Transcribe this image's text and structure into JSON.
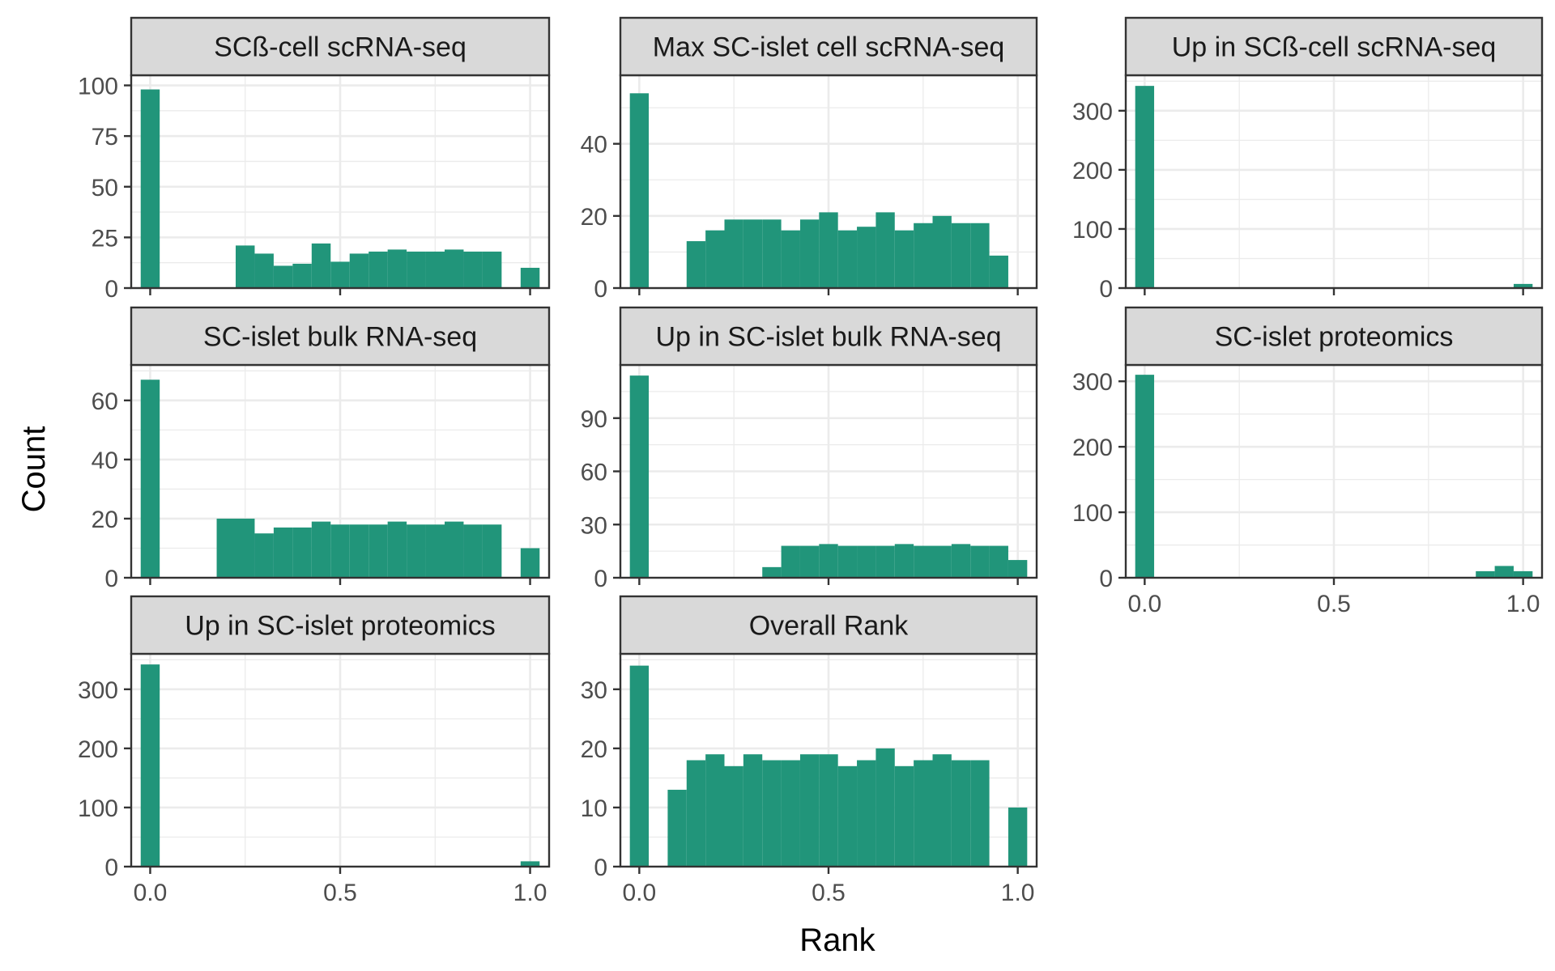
{
  "figure": {
    "xlabel": "Rank",
    "ylabel": "Count",
    "bar_color": "#21957A",
    "strip_fill": "#D9D9D9",
    "panel_border": "#333333",
    "grid_color": "#EBEBEB"
  },
  "chart_data": [
    {
      "type": "bar",
      "title": "SCß-cell scRNA-seq",
      "bin_width": 0.05,
      "bin_centers": [
        0,
        0.05,
        0.1,
        0.15,
        0.2,
        0.25,
        0.3,
        0.35,
        0.4,
        0.45,
        0.5,
        0.55,
        0.6,
        0.65,
        0.7,
        0.75,
        0.8,
        0.85,
        0.9,
        0.95,
        1.0
      ],
      "values": [
        98,
        0,
        0,
        0,
        0,
        21,
        17,
        11,
        12,
        22,
        13,
        17,
        18,
        19,
        18,
        18,
        19,
        18,
        18,
        0,
        10
      ],
      "ylim": [
        0,
        105
      ],
      "xlim": [
        -0.05,
        1.05
      ],
      "xticks": [
        0.0,
        0.5,
        1.0
      ],
      "xtick_labels": [],
      "yticks": [
        0,
        25,
        50,
        75,
        100
      ],
      "ytick_labels": [
        "0",
        "25",
        "50",
        "75",
        "100"
      ],
      "grid": true
    },
    {
      "type": "bar",
      "title": "Max SC-islet cell scRNA-seq",
      "bin_width": 0.05,
      "bin_centers": [
        0,
        0.05,
        0.1,
        0.15,
        0.2,
        0.25,
        0.3,
        0.35,
        0.4,
        0.45,
        0.5,
        0.55,
        0.6,
        0.65,
        0.7,
        0.75,
        0.8,
        0.85,
        0.9,
        0.95,
        1.0
      ],
      "values": [
        54,
        0,
        0,
        13,
        16,
        19,
        19,
        19,
        16,
        19,
        21,
        16,
        17,
        21,
        16,
        18,
        20,
        18,
        18,
        9,
        0
      ],
      "ylim": [
        0,
        59
      ],
      "xlim": [
        -0.05,
        1.05
      ],
      "xticks": [
        0.0,
        0.5,
        1.0
      ],
      "xtick_labels": [],
      "yticks": [
        0,
        20,
        40
      ],
      "ytick_labels": [
        "0",
        "20",
        "40"
      ],
      "grid": true
    },
    {
      "type": "bar",
      "title": "Up in SCß-cell scRNA-seq",
      "bin_width": 0.05,
      "bin_centers": [
        0,
        0.05,
        0.1,
        0.15,
        0.2,
        0.25,
        0.3,
        0.35,
        0.4,
        0.45,
        0.5,
        0.55,
        0.6,
        0.65,
        0.7,
        0.75,
        0.8,
        0.85,
        0.9,
        0.95,
        1.0
      ],
      "values": [
        342,
        0,
        0,
        0,
        0,
        0,
        0,
        0,
        0,
        0,
        0,
        0,
        0,
        0,
        0,
        0,
        0,
        0,
        0,
        0,
        7
      ],
      "ylim": [
        0,
        360
      ],
      "xlim": [
        -0.05,
        1.05
      ],
      "xticks": [
        0.0,
        0.5,
        1.0
      ],
      "xtick_labels": [],
      "yticks": [
        0,
        100,
        200,
        300
      ],
      "ytick_labels": [
        "0",
        "100",
        "200",
        "300"
      ],
      "grid": true
    },
    {
      "type": "bar",
      "title": "SC-islet bulk RNA-seq",
      "bin_width": 0.05,
      "bin_centers": [
        0,
        0.05,
        0.1,
        0.15,
        0.2,
        0.25,
        0.3,
        0.35,
        0.4,
        0.45,
        0.5,
        0.55,
        0.6,
        0.65,
        0.7,
        0.75,
        0.8,
        0.85,
        0.9,
        0.95,
        1.0
      ],
      "values": [
        67,
        0,
        0,
        0,
        20,
        20,
        15,
        17,
        17,
        19,
        18,
        18,
        18,
        19,
        18,
        18,
        19,
        18,
        18,
        0,
        10
      ],
      "ylim": [
        0,
        72
      ],
      "xlim": [
        -0.05,
        1.05
      ],
      "xticks": [
        0.0,
        0.5,
        1.0
      ],
      "xtick_labels": [],
      "yticks": [
        0,
        20,
        40,
        60
      ],
      "ytick_labels": [
        "0",
        "20",
        "40",
        "60"
      ],
      "grid": true
    },
    {
      "type": "bar",
      "title": "Up in SC-islet bulk RNA-seq",
      "bin_width": 0.05,
      "bin_centers": [
        0,
        0.05,
        0.1,
        0.15,
        0.2,
        0.25,
        0.3,
        0.35,
        0.4,
        0.45,
        0.5,
        0.55,
        0.6,
        0.65,
        0.7,
        0.75,
        0.8,
        0.85,
        0.9,
        0.95,
        1.0
      ],
      "values": [
        114,
        0,
        0,
        0,
        0,
        0,
        0,
        6,
        18,
        18,
        19,
        18,
        18,
        18,
        19,
        18,
        18,
        19,
        18,
        18,
        10
      ],
      "ylim": [
        0,
        120
      ],
      "xlim": [
        -0.05,
        1.05
      ],
      "xticks": [
        0.0,
        0.5,
        1.0
      ],
      "xtick_labels": [],
      "yticks": [
        0,
        30,
        60,
        90
      ],
      "ytick_labels": [
        "0",
        "30",
        "60",
        "90"
      ],
      "grid": true
    },
    {
      "type": "bar",
      "title": "SC-islet proteomics",
      "bin_width": 0.05,
      "bin_centers": [
        0,
        0.05,
        0.1,
        0.15,
        0.2,
        0.25,
        0.3,
        0.35,
        0.4,
        0.45,
        0.5,
        0.55,
        0.6,
        0.65,
        0.7,
        0.75,
        0.8,
        0.85,
        0.9,
        0.95,
        1.0
      ],
      "values": [
        310,
        0,
        0,
        0,
        0,
        0,
        0,
        0,
        0,
        0,
        0,
        0,
        0,
        0,
        0,
        0,
        0,
        0,
        10,
        18,
        10
      ],
      "ylim": [
        0,
        325
      ],
      "xlim": [
        -0.05,
        1.05
      ],
      "xticks": [
        0.0,
        0.5,
        1.0
      ],
      "xtick_labels": [
        "0.0",
        "0.5",
        "1.0"
      ],
      "yticks": [
        0,
        100,
        200,
        300
      ],
      "ytick_labels": [
        "0",
        "100",
        "200",
        "300"
      ],
      "grid": true
    },
    {
      "type": "bar",
      "title": "Up in SC-islet proteomics",
      "bin_width": 0.05,
      "bin_centers": [
        0,
        0.05,
        0.1,
        0.15,
        0.2,
        0.25,
        0.3,
        0.35,
        0.4,
        0.45,
        0.5,
        0.55,
        0.6,
        0.65,
        0.7,
        0.75,
        0.8,
        0.85,
        0.9,
        0.95,
        1.0
      ],
      "values": [
        342,
        0,
        0,
        0,
        0,
        0,
        0,
        0,
        0,
        0,
        0,
        0,
        0,
        0,
        0,
        0,
        0,
        0,
        0,
        0,
        9
      ],
      "ylim": [
        0,
        360
      ],
      "xlim": [
        -0.05,
        1.05
      ],
      "xticks": [
        0.0,
        0.5,
        1.0
      ],
      "xtick_labels": [
        "0.0",
        "0.5",
        "1.0"
      ],
      "yticks": [
        0,
        100,
        200,
        300
      ],
      "ytick_labels": [
        "0",
        "100",
        "200",
        "300"
      ],
      "grid": true
    },
    {
      "type": "bar",
      "title": "Overall Rank",
      "bin_width": 0.05,
      "bin_centers": [
        0,
        0.05,
        0.1,
        0.15,
        0.2,
        0.25,
        0.3,
        0.35,
        0.4,
        0.45,
        0.5,
        0.55,
        0.6,
        0.65,
        0.7,
        0.75,
        0.8,
        0.85,
        0.9,
        0.95,
        1.0
      ],
      "values": [
        34,
        0,
        13,
        18,
        19,
        17,
        19,
        18,
        18,
        19,
        19,
        17,
        18,
        20,
        17,
        18,
        19,
        18,
        18,
        0,
        10
      ],
      "ylim": [
        0,
        36
      ],
      "xlim": [
        -0.05,
        1.05
      ],
      "xticks": [
        0.0,
        0.5,
        1.0
      ],
      "xtick_labels": [
        "0.0",
        "0.5",
        "1.0"
      ],
      "yticks": [
        0,
        10,
        20,
        30
      ],
      "ytick_labels": [
        "0",
        "10",
        "20",
        "30"
      ],
      "grid": true
    }
  ]
}
